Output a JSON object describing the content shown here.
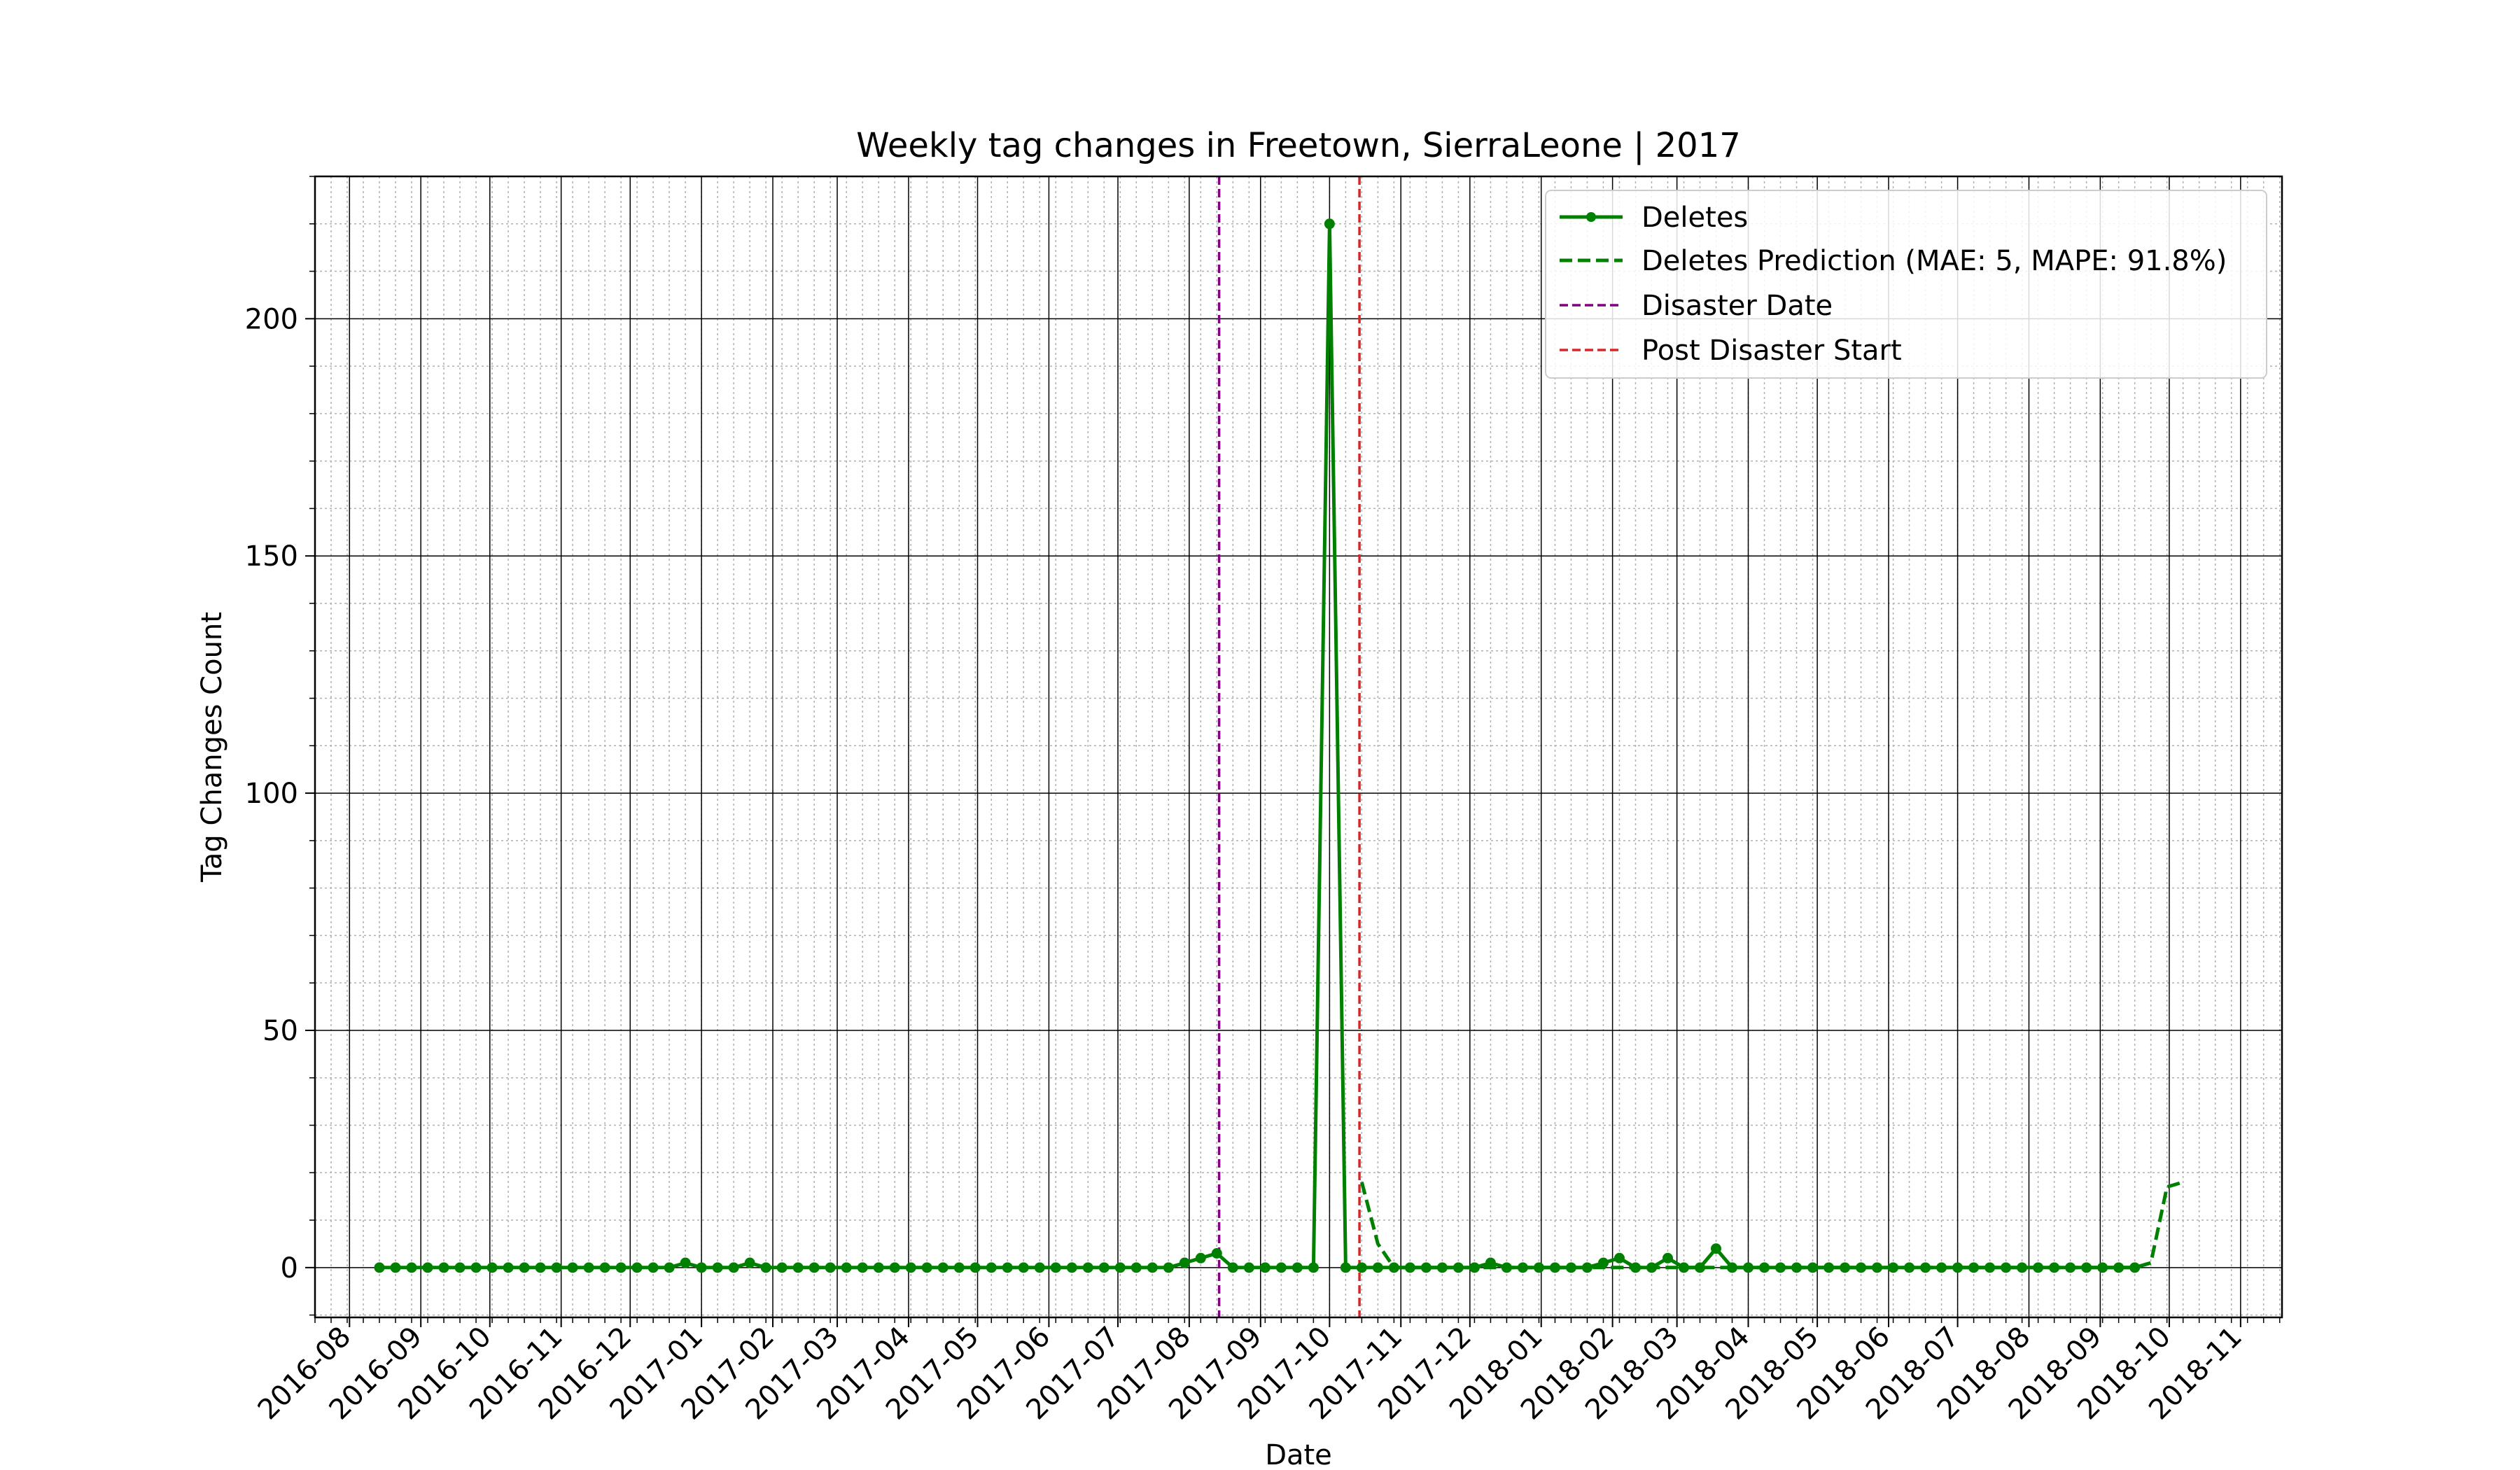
{
  "chart_data": {
    "type": "line",
    "title": "Weekly tag changes in Freetown, SierraLeone | 2017",
    "xlabel": "Date",
    "ylabel": "Tag Changes Count",
    "xlim": [
      "2016-07-17",
      "2018-11-19"
    ],
    "ylim": [
      -10.5,
      230
    ],
    "x_ticks": [
      "2016-08",
      "2016-09",
      "2016-10",
      "2016-11",
      "2016-12",
      "2017-01",
      "2017-02",
      "2017-03",
      "2017-04",
      "2017-05",
      "2017-06",
      "2017-07",
      "2017-08",
      "2017-09",
      "2017-10",
      "2017-11",
      "2017-12",
      "2018-01",
      "2018-02",
      "2018-03",
      "2018-04",
      "2018-05",
      "2018-06",
      "2018-07",
      "2018-08",
      "2018-09",
      "2018-10",
      "2018-11"
    ],
    "y_ticks": [
      0,
      50,
      100,
      150,
      200
    ],
    "grid": {
      "major": true,
      "minor": true
    },
    "legend_position": "top-right",
    "series": [
      {
        "name": "Deletes",
        "style": "solid",
        "marker": "circle",
        "color": "#008000",
        "x_start": "2016-08-14",
        "step_days": 7,
        "values": [
          0,
          0,
          0,
          0,
          0,
          0,
          0,
          0,
          0,
          0,
          0,
          0,
          0,
          0,
          0,
          0,
          0,
          0,
          0,
          1,
          0,
          0,
          0,
          1,
          0,
          0,
          0,
          0,
          0,
          0,
          0,
          0,
          0,
          0,
          0,
          0,
          0,
          0,
          0,
          0,
          0,
          0,
          0,
          0,
          0,
          0,
          0,
          0,
          0,
          0,
          1,
          2,
          3,
          0,
          0,
          0,
          0,
          0,
          0,
          220,
          0,
          0,
          0,
          0,
          0,
          0,
          0,
          0,
          0,
          1,
          0,
          0,
          0,
          0,
          0,
          0,
          1,
          2,
          0,
          0,
          2,
          0,
          0,
          4,
          0,
          0,
          0,
          0,
          0,
          0,
          0,
          0,
          0,
          0,
          0,
          0,
          0,
          0,
          0,
          0,
          0,
          0,
          0,
          0,
          0,
          0,
          0,
          0,
          0,
          0
        ]
      },
      {
        "name": "Deletes Prediction (MAE: 5, MAPE: 91.8%)",
        "style": "dashed",
        "color": "#008000",
        "points": [
          [
            "2017-10-15",
            18
          ],
          [
            "2017-10-22",
            5
          ],
          [
            "2017-10-29",
            0
          ],
          [
            "2017-11-05",
            0
          ],
          [
            "2017-11-12",
            0
          ],
          [
            "2017-11-19",
            0
          ],
          [
            "2017-11-26",
            0
          ],
          [
            "2017-12-03",
            0
          ],
          [
            "2017-12-10",
            0
          ],
          [
            "2017-12-17",
            0
          ],
          [
            "2017-12-24",
            0
          ],
          [
            "2017-12-31",
            0
          ],
          [
            "2018-01-07",
            0
          ],
          [
            "2018-01-14",
            0
          ],
          [
            "2018-01-21",
            0
          ],
          [
            "2018-01-28",
            0
          ],
          [
            "2018-02-04",
            0
          ],
          [
            "2018-02-11",
            0
          ],
          [
            "2018-02-18",
            0
          ],
          [
            "2018-02-25",
            0
          ],
          [
            "2018-03-04",
            0
          ],
          [
            "2018-03-11",
            0
          ],
          [
            "2018-03-18",
            0
          ],
          [
            "2018-03-25",
            0
          ],
          [
            "2018-04-01",
            0
          ],
          [
            "2018-04-08",
            0
          ],
          [
            "2018-04-15",
            0
          ],
          [
            "2018-04-22",
            0
          ],
          [
            "2018-04-29",
            0
          ],
          [
            "2018-05-06",
            0
          ],
          [
            "2018-05-13",
            0
          ],
          [
            "2018-05-20",
            0
          ],
          [
            "2018-05-27",
            0
          ],
          [
            "2018-06-03",
            0
          ],
          [
            "2018-06-10",
            0
          ],
          [
            "2018-06-17",
            0
          ],
          [
            "2018-06-24",
            0
          ],
          [
            "2018-07-01",
            0
          ],
          [
            "2018-07-08",
            0
          ],
          [
            "2018-07-15",
            0
          ],
          [
            "2018-07-22",
            0
          ],
          [
            "2018-07-29",
            0
          ],
          [
            "2018-08-05",
            0
          ],
          [
            "2018-08-12",
            0
          ],
          [
            "2018-08-19",
            0
          ],
          [
            "2018-08-26",
            0
          ],
          [
            "2018-09-02",
            0
          ],
          [
            "2018-09-09",
            0
          ],
          [
            "2018-09-16",
            0
          ],
          [
            "2018-09-23",
            1
          ],
          [
            "2018-09-30",
            17
          ],
          [
            "2018-10-07",
            18
          ]
        ]
      }
    ],
    "vlines": [
      {
        "name": "Disaster Date",
        "date": "2017-08-14",
        "color": "#800080"
      },
      {
        "name": "Post Disaster Start",
        "date": "2017-10-14",
        "color": "#d62728"
      }
    ]
  }
}
